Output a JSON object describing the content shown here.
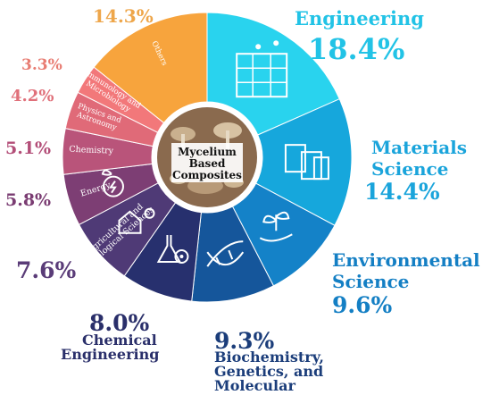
{
  "chart_data": {
    "type": "pie",
    "donut": true,
    "center_label": [
      "Mycelium",
      "Based",
      "Composites"
    ],
    "slices": [
      {
        "label": "Engineering",
        "label_lines": [
          "Engineering"
        ],
        "pct_text": "18.4%",
        "value": 18.4,
        "color": "#29d3ee",
        "label_color": "#22c3e6",
        "icon": "construction-workers-icon"
      },
      {
        "label": "Materials Science",
        "label_lines": [
          "Materials",
          "Science"
        ],
        "pct_text": "14.4%",
        "value": 14.4,
        "color": "#16a7dc",
        "label_color": "#1aa4db",
        "icon": "material-swatches-icon"
      },
      {
        "label": "Environmental Science",
        "label_lines": [
          "Environmental",
          "Science"
        ],
        "pct_text": "9.6%",
        "value": 9.6,
        "color": "#1482c8",
        "label_color": "#147fc4",
        "icon": "plant-in-hand-icon"
      },
      {
        "label": "Biochemistry, Genetics, and Molecular",
        "label_lines": [
          "Biochemistry,",
          "Genetics, and",
          "Molecular"
        ],
        "pct_text": "9.3%",
        "value": 9.3,
        "color": "#15569b",
        "label_color": "#1b3d7a",
        "icon": "dna-icon"
      },
      {
        "label": "Chemical Engineering",
        "label_lines": [
          "Chemical",
          "Engineering"
        ],
        "pct_text": "8.0%",
        "value": 8.0,
        "color": "#27306e",
        "label_color": "#2a2f6a",
        "icon": "flask-gear-icon"
      },
      {
        "label": "Agricultural and Biological Sciences",
        "label_lines": [
          "Agricultural and",
          "Biological Sciences"
        ],
        "pct_text": "7.6%",
        "value": 7.6,
        "color": "#4f3a76",
        "label_color": "#5a3c78",
        "icon": "barn-icon"
      },
      {
        "label": "Energy",
        "label_lines": [
          "Energy"
        ],
        "pct_text": "5.8%",
        "value": 5.8,
        "color": "#7d3e74",
        "label_color": "#7a3c72",
        "icon": "plant-energy-icon"
      },
      {
        "label": "Chemistry",
        "label_lines": [
          "Chemistry"
        ],
        "pct_text": "5.1%",
        "value": 5.1,
        "color": "#b9547a",
        "label_color": "#b34e78",
        "icon": ""
      },
      {
        "label": "Physics and Astronomy",
        "label_lines": [
          "Physics and",
          "Astronomy"
        ],
        "pct_text": "4.2%",
        "value": 4.2,
        "color": "#e06a78",
        "label_color": "#e0707a",
        "icon": ""
      },
      {
        "label": "Immunology and Microbiology",
        "label_lines": [
          "Immunology and",
          "Microbiology"
        ],
        "pct_text": "3.3%",
        "value": 3.3,
        "color": "#f2787a",
        "label_color": "#e87c72",
        "icon": ""
      },
      {
        "label": "Others",
        "label_lines": [
          "Others"
        ],
        "pct_text": "14.3%",
        "value": 14.3,
        "color": "#f7a43d",
        "label_color": "#eea64a",
        "icon": ""
      }
    ]
  }
}
